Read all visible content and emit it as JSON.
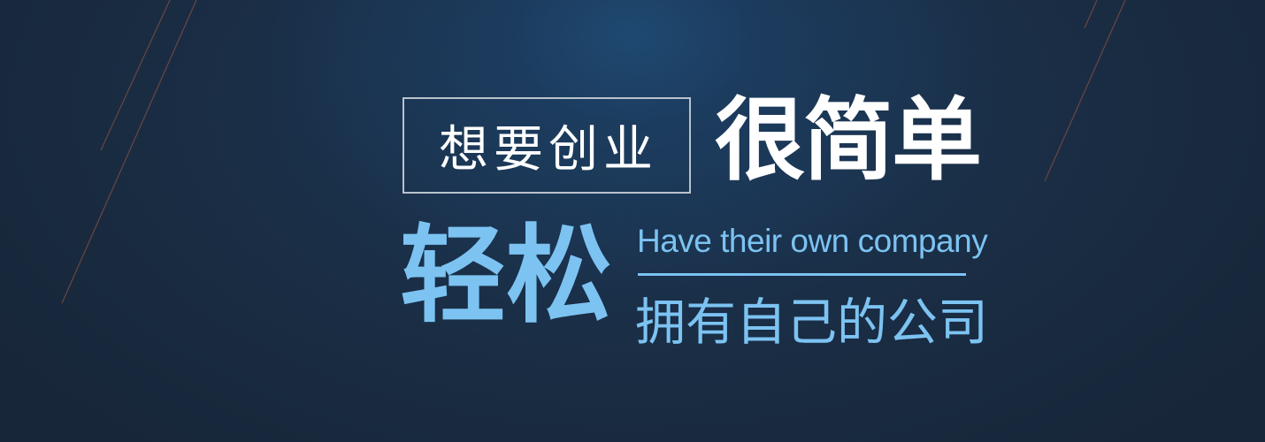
{
  "banner": {
    "boxed_text": "想要创业",
    "headline": "很简单",
    "big_text": "轻松",
    "english_text": "Have their own company",
    "subtitle": "拥有自己的公司"
  },
  "colors": {
    "background": "#1b2c40",
    "accent_blue": "#7cc3f2",
    "white": "#ffffff",
    "box_border": "#b9c2cc",
    "decor_line": "#7a4a44"
  }
}
